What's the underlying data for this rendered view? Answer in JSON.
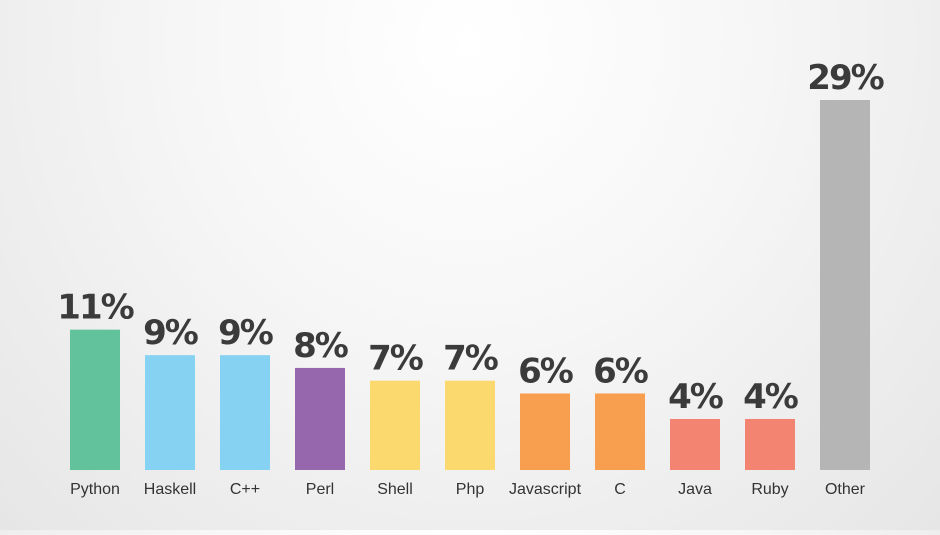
{
  "chart_data": {
    "type": "bar",
    "categories": [
      "Python",
      "Haskell",
      "C++",
      "Perl",
      "Shell",
      "Php",
      "Javascript",
      "C",
      "Java",
      "Ruby",
      "Other"
    ],
    "values": [
      11,
      9,
      9,
      8,
      7,
      7,
      6,
      6,
      4,
      4,
      29
    ],
    "value_labels": [
      "11%",
      "9%",
      "9%",
      "8%",
      "7%",
      "7%",
      "6%",
      "6%",
      "4%",
      "4%",
      "29%"
    ],
    "colors": [
      "#61c29b",
      "#86d2f3",
      "#86d2f3",
      "#9767ad",
      "#fbd96f",
      "#fbd96f",
      "#f89f4f",
      "#f89f4f",
      "#f48472",
      "#f48472",
      "#b5b5b5"
    ],
    "unit": "%",
    "grid": false,
    "legend": "none",
    "ylim": [
      0,
      29
    ]
  }
}
